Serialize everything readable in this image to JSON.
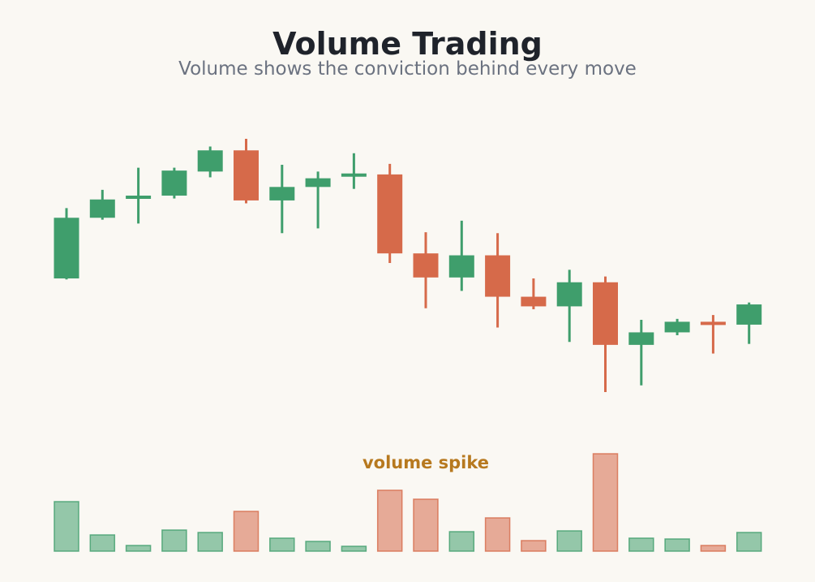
{
  "title": "Volume Trading",
  "subtitle": "Volume shows the conviction behind every move",
  "colors": {
    "up": "#3f9e6c",
    "down": "#d66a4a",
    "annotation": "#b7791f",
    "background": "#faf8f3"
  },
  "chart_data": {
    "type": "candlestick",
    "grid": false,
    "candles": [
      {
        "open": -22.7,
        "close": -16.4,
        "high": -15.4,
        "low": -22.8
      },
      {
        "open": -16.4,
        "close": -14.5,
        "high": -13.5,
        "low": -16.6
      },
      {
        "open": -14.4,
        "close": -14.1,
        "high": -11.2,
        "low": -17.0
      },
      {
        "open": -14.1,
        "close": -11.5,
        "high": -11.2,
        "low": -14.4
      },
      {
        "open": -11.6,
        "close": -9.4,
        "high": -9.0,
        "low": -12.2
      },
      {
        "open": -9.4,
        "close": -14.6,
        "high": -8.2,
        "low": -14.9
      },
      {
        "open": -14.6,
        "close": -13.2,
        "high": -10.9,
        "low": -18.0
      },
      {
        "open": -13.2,
        "close": -12.3,
        "high": -11.6,
        "low": -17.5
      },
      {
        "open": -12.1,
        "close": -11.8,
        "high": -9.7,
        "low": -13.4
      },
      {
        "open": -11.9,
        "close": -20.1,
        "high": -10.8,
        "low": -21.1
      },
      {
        "open": -20.1,
        "close": -22.6,
        "high": -17.9,
        "low": -25.8
      },
      {
        "open": -22.6,
        "close": -20.3,
        "high": -16.7,
        "low": -24.0
      },
      {
        "open": -20.3,
        "close": -24.6,
        "high": -18.0,
        "low": -27.8
      },
      {
        "open": -24.6,
        "close": -25.6,
        "high": -22.7,
        "low": -25.9
      },
      {
        "open": -25.6,
        "close": -23.1,
        "high": -21.8,
        "low": -29.3
      },
      {
        "open": -23.1,
        "close": -29.6,
        "high": -22.5,
        "low": -34.5
      },
      {
        "open": -29.6,
        "close": -28.3,
        "high": -27.0,
        "low": -33.8
      },
      {
        "open": -28.3,
        "close": -27.2,
        "high": -26.9,
        "low": -28.6
      },
      {
        "open": -27.2,
        "close": -27.5,
        "high": -26.5,
        "low": -30.5
      },
      {
        "open": -27.5,
        "close": -25.4,
        "high": -25.2,
        "low": -29.5
      }
    ],
    "volume": [
      61,
      20,
      7,
      26,
      23,
      49,
      16,
      12,
      6,
      75,
      64,
      24,
      41,
      13,
      25,
      120,
      16,
      15,
      7,
      23
    ],
    "volume_ylim": [
      0,
      125
    ],
    "annotation": {
      "text": "volume spike",
      "index": 10
    }
  }
}
